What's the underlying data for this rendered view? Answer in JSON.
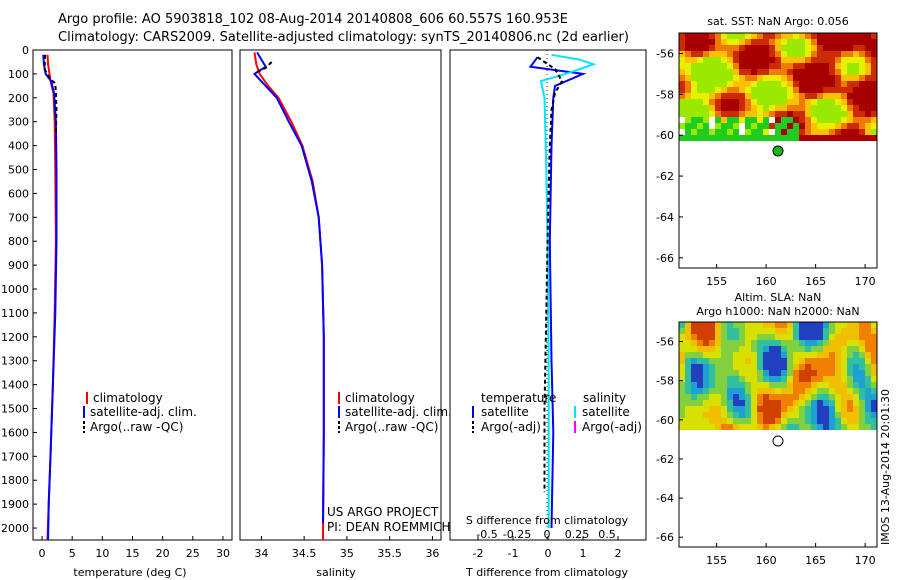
{
  "header": {
    "line1": "Argo profile: AO 5903818_102 08-Aug-2014 20140808_606 60.557S 160.953E",
    "line2": "Climatology: CARS2009. Satellite-adjusted climatology: synTS_20140806.nc (2d earlier)"
  },
  "depth_ticks": [
    0,
    100,
    200,
    300,
    400,
    500,
    600,
    700,
    800,
    900,
    1000,
    1100,
    1200,
    1300,
    1400,
    1500,
    1600,
    1700,
    1800,
    1900,
    2000
  ],
  "colors": {
    "climatology": "#ff0000",
    "satellite": "#0000ff",
    "argo": "#000000",
    "s_satellite": "#00e5ff",
    "s_argo": "#ff00ff",
    "sst_warm": "#b00000",
    "sst_mid": "#ffd000",
    "sst_cool": "#00cc00"
  },
  "chart_data": [
    {
      "type": "line",
      "id": "temperature",
      "xlabel": "temperature (deg C)",
      "xticks": [
        0,
        5,
        10,
        15,
        20,
        25,
        30
      ],
      "xlim": [
        -1.5,
        31.5
      ],
      "ylim": [
        0,
        2050
      ],
      "legend": [
        "climatology",
        "satellite-adj. clim.",
        "Argo(..raw -QC)"
      ],
      "series": [
        {
          "name": "climatology",
          "color": "#ff0000",
          "points": [
            [
              0.9,
              20
            ],
            [
              1.0,
              60
            ],
            [
              1.4,
              130
            ],
            [
              1.9,
              180
            ],
            [
              2.1,
              300
            ],
            [
              2.2,
              500
            ],
            [
              2.3,
              800
            ],
            [
              2.1,
              1100
            ],
            [
              1.8,
              1400
            ],
            [
              1.4,
              1700
            ],
            [
              1.1,
              1900
            ],
            [
              0.9,
              2050
            ]
          ]
        },
        {
          "name": "satellite-adj. clim.",
          "color": "#0000ff",
          "points": [
            [
              0.2,
              20
            ],
            [
              0.3,
              60
            ],
            [
              0.6,
              100
            ],
            [
              1.5,
              130
            ],
            [
              2.0,
              180
            ],
            [
              2.3,
              300
            ],
            [
              2.4,
              500
            ],
            [
              2.4,
              800
            ],
            [
              2.2,
              1100
            ],
            [
              1.8,
              1400
            ],
            [
              1.4,
              1700
            ],
            [
              1.1,
              1900
            ],
            [
              1.0,
              2050
            ]
          ]
        },
        {
          "name": "Argo(..raw -QC)",
          "color": "#000000",
          "points": [
            [
              0.5,
              20
            ],
            [
              0.4,
              80
            ],
            [
              1.3,
              120
            ],
            [
              2.2,
              140
            ],
            [
              2.3,
              180
            ],
            [
              2.4,
              250
            ],
            [
              2.3,
              350
            ]
          ]
        }
      ]
    },
    {
      "type": "line",
      "id": "salinity",
      "xlabel": "salinity",
      "xticks": [
        34,
        34.5,
        35,
        35.5,
        36
      ],
      "xlim": [
        33.75,
        36.1
      ],
      "ylim": [
        0,
        2050
      ],
      "legend": [
        "climatology",
        "satellite-adj. clim.",
        "Argo(..raw -QC)"
      ],
      "credit": [
        "US ARGO PROJECT",
        "PI: DEAN ROEMMICH"
      ],
      "series": [
        {
          "name": "climatology",
          "color": "#ff0000",
          "points": [
            [
              33.92,
              10
            ],
            [
              33.94,
              60
            ],
            [
              33.98,
              100
            ],
            [
              34.08,
              150
            ],
            [
              34.2,
              200
            ],
            [
              34.35,
              300
            ],
            [
              34.48,
              400
            ],
            [
              34.6,
              550
            ],
            [
              34.67,
              700
            ],
            [
              34.71,
              900
            ],
            [
              34.73,
              1200
            ],
            [
              34.73,
              1600
            ],
            [
              34.72,
              2050
            ]
          ]
        },
        {
          "name": "satellite-adj. clim.",
          "color": "#0000ff",
          "points": [
            [
              33.95,
              10
            ],
            [
              34.0,
              40
            ],
            [
              34.05,
              70
            ],
            [
              33.92,
              100
            ],
            [
              34.05,
              150
            ],
            [
              34.18,
              200
            ],
            [
              34.32,
              300
            ],
            [
              34.47,
              400
            ],
            [
              34.59,
              550
            ],
            [
              34.67,
              700
            ],
            [
              34.71,
              900
            ],
            [
              34.73,
              1200
            ],
            [
              34.73,
              1600
            ],
            [
              34.72,
              1980
            ]
          ]
        },
        {
          "name": "Argo(..raw -QC)",
          "color": "#000000",
          "points": [
            [
              34.12,
              50
            ],
            [
              34.05,
              75
            ],
            [
              33.93,
              95
            ]
          ]
        }
      ]
    },
    {
      "type": "line",
      "id": "difference",
      "xlabel": "T difference from climatology",
      "xlabel_top": "S difference from climatology",
      "xticks": [
        -2,
        -1,
        0,
        1,
        2
      ],
      "xlim": [
        -2.8,
        2.8
      ],
      "top_ticks": [
        "-0.5",
        "-0.25",
        "0",
        "0.25",
        "0.5"
      ],
      "ylim": [
        0,
        2050
      ],
      "legend_t_title": "temperature",
      "legend_s_title": "salinity",
      "legend_t": [
        "satellite",
        "Argo(-adj)"
      ],
      "legend_s": [
        "satellite",
        "Argo(-adj)"
      ],
      "series": [
        {
          "name": "T satellite",
          "color": "#0000ff",
          "points": [
            [
              -0.3,
              30
            ],
            [
              -0.5,
              70
            ],
            [
              1.0,
              100
            ],
            [
              0.2,
              150
            ],
            [
              0.15,
              200
            ],
            [
              0.1,
              400
            ],
            [
              0.05,
              800
            ],
            [
              0.1,
              1300
            ],
            [
              0.15,
              1600
            ],
            [
              0.1,
              2000
            ]
          ]
        },
        {
          "name": "S satellite",
          "color": "#00e5ff",
          "points": [
            [
              0.1,
              20
            ],
            [
              0.9,
              40
            ],
            [
              1.3,
              60
            ],
            [
              0.5,
              100
            ],
            [
              -0.2,
              130
            ],
            [
              -0.1,
              200
            ],
            [
              -0.05,
              500
            ],
            [
              0.0,
              900
            ],
            [
              0.02,
              1400
            ],
            [
              0.02,
              2000
            ]
          ]
        },
        {
          "name": "T Argo",
          "color": "#000000",
          "points": [
            [
              -0.3,
              30
            ],
            [
              0.2,
              80
            ],
            [
              0.4,
              130
            ],
            [
              0.2,
              180
            ],
            [
              0.1,
              250
            ],
            [
              0.05,
              400
            ],
            [
              0.0,
              700
            ],
            [
              -0.05,
              1100
            ],
            [
              -0.1,
              1500
            ],
            [
              -0.1,
              1850
            ]
          ]
        }
      ]
    }
  ],
  "map_sst": {
    "title": "sat. SST: NaN Argo: 0.056",
    "xticks": [
      "155",
      "160",
      "165",
      "170"
    ],
    "yticks": [
      "-56",
      "-58",
      "-60",
      "-62",
      "-64",
      "-66"
    ]
  },
  "map_sla": {
    "title1": "Altim. SLA: NaN",
    "title2": "Argo h1000: NaN h2000: NaN",
    "xticks": [
      "155",
      "160",
      "165",
      "170"
    ],
    "yticks": [
      "-56",
      "-58",
      "-60",
      "-62",
      "-64",
      "-66"
    ]
  },
  "footer_note": "IMOS 13-Aug-2014 20:01:30"
}
